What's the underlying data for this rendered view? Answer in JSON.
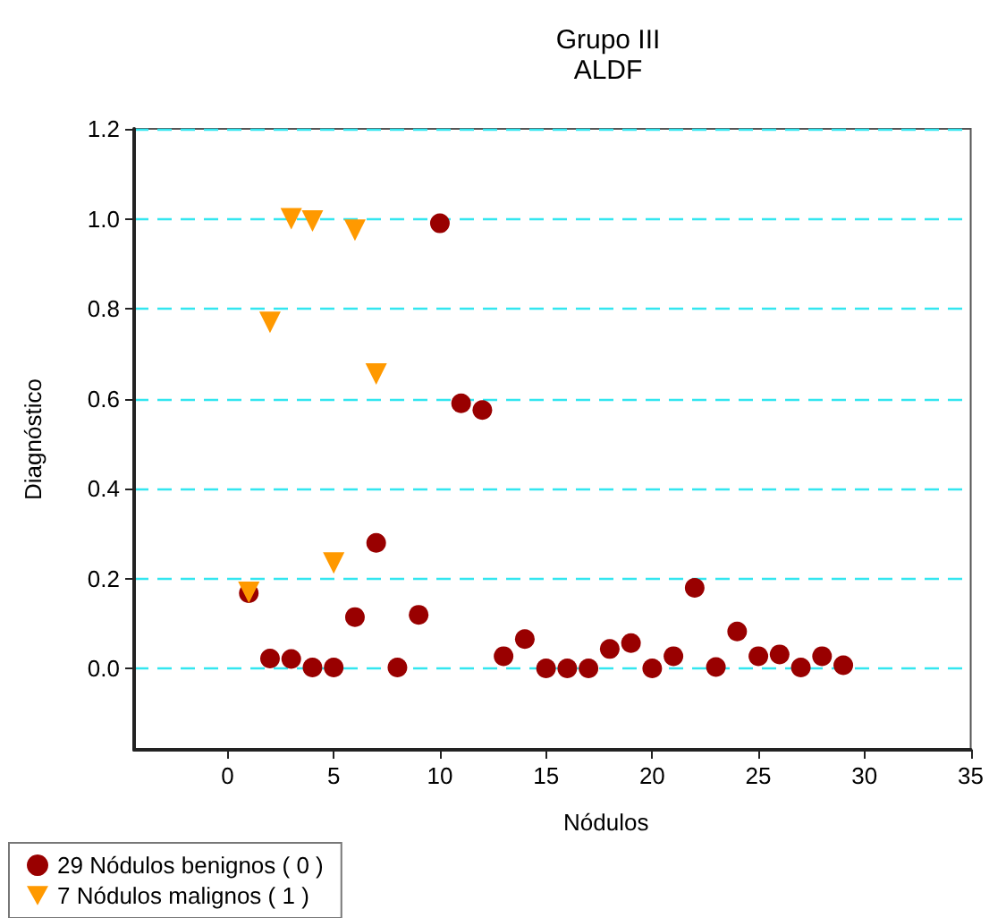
{
  "chart_data": {
    "type": "scatter",
    "title": "Grupo III",
    "subtitle": "ALDF",
    "xlabel": "Nódulos",
    "ylabel": "Diagnóstico",
    "xlim": [
      -4.4,
      35
    ],
    "xticks": [
      0,
      5,
      10,
      15,
      20,
      25,
      30,
      35
    ],
    "ylim": [
      -0.18,
      1.2
    ],
    "yticks": [
      {
        "value": 0,
        "label": "0.0"
      },
      {
        "value": 0.2,
        "label": "0.2"
      },
      {
        "value": 0.4,
        "label": "0.4"
      },
      {
        "value": 0.6,
        "label": "0.6"
      },
      {
        "value": 0.8,
        "label": "0.8"
      },
      {
        "value": 1,
        "label": "1.0"
      },
      {
        "value": 1.2,
        "label": "1.2"
      }
    ],
    "grid": "y",
    "legend": "bottom left",
    "series": [
      {
        "name": "29 Nódulos benignos ( 0 )",
        "color": "#990000",
        "marker": "circle",
        "x": [
          1,
          2,
          3,
          4,
          5,
          6,
          7,
          8,
          9,
          10,
          11,
          12,
          13,
          14,
          15,
          16,
          17,
          18,
          19,
          20,
          21,
          22,
          23,
          24,
          25,
          26,
          27,
          28,
          29
        ],
        "values": [
          0.168,
          0.023,
          0.022,
          0.003,
          0.003,
          0.115,
          0.28,
          0.003,
          0.12,
          0.99,
          0.59,
          0.575,
          0.028,
          0.066,
          0.001,
          0.001,
          0.001,
          0.044,
          0.057,
          0.001,
          0.028,
          0.18,
          0.004,
          0.083,
          0.028,
          0.032,
          0.003,
          0.028,
          0.008
        ]
      },
      {
        "name": "7 Nódulos malignos ( 1 )",
        "color": "#ff9900",
        "marker": "triangle",
        "x": [
          1,
          2,
          3,
          4,
          5,
          6,
          7
        ],
        "values": [
          0.17,
          0.77,
          1.0,
          0.995,
          0.235,
          0.975,
          0.655
        ]
      }
    ]
  }
}
